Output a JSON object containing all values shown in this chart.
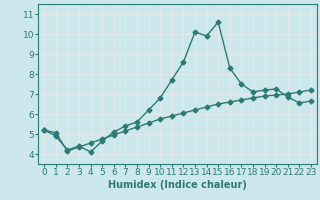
{
  "xlabel": "Humidex (Indice chaleur)",
  "xlim": [
    -0.5,
    23.5
  ],
  "ylim": [
    3.5,
    11.5
  ],
  "yticks": [
    4,
    5,
    6,
    7,
    8,
    9,
    10,
    11
  ],
  "xticks": [
    0,
    1,
    2,
    3,
    4,
    5,
    6,
    7,
    8,
    9,
    10,
    11,
    12,
    13,
    14,
    15,
    16,
    17,
    18,
    19,
    20,
    21,
    22,
    23
  ],
  "bg_color": "#cce8ec",
  "grid_color": "#e8e8e8",
  "line_color": "#2d7a74",
  "line1_x": [
    0,
    1,
    2,
    3,
    4,
    5,
    6,
    7,
    8,
    9,
    10,
    11,
    12,
    13,
    14,
    15,
    16,
    17,
    18,
    19,
    20,
    21,
    22,
    23
  ],
  "line1_y": [
    5.2,
    4.9,
    4.2,
    4.4,
    4.1,
    4.65,
    5.1,
    5.4,
    5.6,
    6.2,
    6.8,
    7.7,
    8.6,
    10.1,
    9.9,
    10.6,
    8.3,
    7.5,
    7.1,
    7.2,
    7.25,
    6.85,
    6.55,
    6.65
  ],
  "line2_x": [
    0,
    1,
    2,
    3,
    4,
    5,
    6,
    7,
    8,
    9,
    10,
    11,
    12,
    13,
    14,
    15,
    16,
    17,
    18,
    19,
    20,
    21,
    22,
    23
  ],
  "line2_y": [
    5.2,
    5.05,
    4.15,
    4.35,
    4.55,
    4.75,
    4.95,
    5.15,
    5.35,
    5.55,
    5.75,
    5.9,
    6.05,
    6.2,
    6.35,
    6.5,
    6.6,
    6.7,
    6.8,
    6.9,
    6.95,
    7.0,
    7.1,
    7.2
  ],
  "marker": "D",
  "markersize": 2.5,
  "linewidth": 1.0,
  "xlabel_fontsize": 7,
  "tick_fontsize": 6.5
}
